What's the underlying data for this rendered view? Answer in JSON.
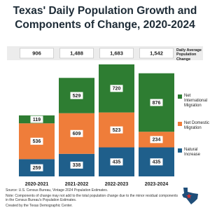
{
  "chart_data": {
    "type": "stacked_bar",
    "title": "Texas' Daily Population Growth and Components of Change, 2020-2024",
    "categories": [
      "2020-2021",
      "2021-2022",
      "2022-2023",
      "2023-2024"
    ],
    "series": [
      {
        "name": "Natural Increase",
        "color": "#1f5f8b",
        "values": [
          259,
          338,
          435,
          435
        ]
      },
      {
        "name": "Net Domestic Migration",
        "color": "#ef7d3a",
        "values": [
          536,
          609,
          523,
          234
        ]
      },
      {
        "name": "Net International Migration",
        "color": "#2e7d32",
        "values": [
          119,
          529,
          720,
          876
        ]
      }
    ],
    "totals": {
      "label": "Daily Average Population Change",
      "values": [
        906,
        1488,
        1683,
        1542
      ],
      "value_labels": [
        "906",
        "1,488",
        "1,683",
        "1,542"
      ]
    },
    "source": "Source: U.S. Census Bureau, Vintage 2024 Population Estimates.",
    "note": "Note: Components of change may not add to the total population change due to the minor residual components in the Census Bureau's Population Estimates.",
    "credit": "Created by the Texas Demographic Center."
  }
}
